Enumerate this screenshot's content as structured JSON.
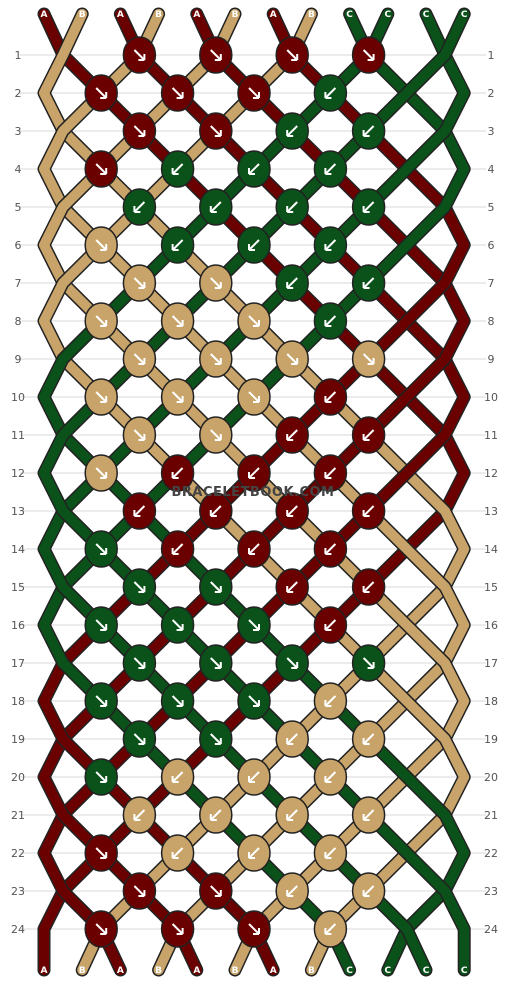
{
  "watermark": "BRACELETBOOK.COM",
  "colors": {
    "A": "#6b0000",
    "B": "#c8a46a",
    "C": "#0a5219"
  },
  "strands": [
    "A",
    "B",
    "A",
    "B",
    "A",
    "B",
    "A",
    "B",
    "C",
    "C",
    "C",
    "C"
  ],
  "rows": [
    {
      "label": "1",
      "knots": [
        {
          "color": "A",
          "dir": "se"
        },
        {
          "color": "A",
          "dir": "se"
        },
        {
          "color": "A",
          "dir": "se"
        },
        {
          "color": "A",
          "dir": "se"
        }
      ]
    },
    {
      "label": "2",
      "knots": [
        {
          "color": "A",
          "dir": "se"
        },
        {
          "color": "A",
          "dir": "se"
        },
        {
          "color": "A",
          "dir": "se"
        },
        {
          "color": "C",
          "dir": "sw"
        }
      ]
    },
    {
      "label": "3",
      "knots": [
        {
          "color": "A",
          "dir": "se"
        },
        {
          "color": "A",
          "dir": "se"
        },
        {
          "color": "C",
          "dir": "sw"
        },
        {
          "color": "C",
          "dir": "sw"
        }
      ]
    },
    {
      "label": "4",
      "knots": [
        {
          "color": "A",
          "dir": "se"
        },
        {
          "color": "C",
          "dir": "sw"
        },
        {
          "color": "C",
          "dir": "sw"
        },
        {
          "color": "C",
          "dir": "sw"
        }
      ]
    },
    {
      "label": "5",
      "knots": [
        {
          "color": "C",
          "dir": "sw"
        },
        {
          "color": "C",
          "dir": "sw"
        },
        {
          "color": "C",
          "dir": "sw"
        },
        {
          "color": "C",
          "dir": "sw"
        }
      ]
    },
    {
      "label": "6",
      "knots": [
        {
          "color": "B",
          "dir": "se"
        },
        {
          "color": "C",
          "dir": "sw"
        },
        {
          "color": "C",
          "dir": "sw"
        },
        {
          "color": "C",
          "dir": "sw"
        }
      ]
    },
    {
      "label": "7",
      "knots": [
        {
          "color": "B",
          "dir": "se"
        },
        {
          "color": "B",
          "dir": "se"
        },
        {
          "color": "C",
          "dir": "sw"
        },
        {
          "color": "C",
          "dir": "sw"
        }
      ]
    },
    {
      "label": "8",
      "knots": [
        {
          "color": "B",
          "dir": "se"
        },
        {
          "color": "B",
          "dir": "se"
        },
        {
          "color": "B",
          "dir": "se"
        },
        {
          "color": "C",
          "dir": "sw"
        }
      ]
    },
    {
      "label": "9",
      "knots": [
        {
          "color": "B",
          "dir": "se"
        },
        {
          "color": "B",
          "dir": "se"
        },
        {
          "color": "B",
          "dir": "se"
        },
        {
          "color": "B",
          "dir": "se"
        }
      ]
    },
    {
      "label": "10",
      "knots": [
        {
          "color": "B",
          "dir": "se"
        },
        {
          "color": "B",
          "dir": "se"
        },
        {
          "color": "B",
          "dir": "se"
        },
        {
          "color": "A",
          "dir": "sw"
        }
      ]
    },
    {
      "label": "11",
      "knots": [
        {
          "color": "B",
          "dir": "se"
        },
        {
          "color": "B",
          "dir": "se"
        },
        {
          "color": "A",
          "dir": "sw"
        },
        {
          "color": "A",
          "dir": "sw"
        }
      ]
    },
    {
      "label": "12",
      "knots": [
        {
          "color": "B",
          "dir": "se"
        },
        {
          "color": "A",
          "dir": "sw"
        },
        {
          "color": "A",
          "dir": "sw"
        },
        {
          "color": "A",
          "dir": "sw"
        }
      ]
    },
    {
      "label": "13",
      "knots": [
        {
          "color": "A",
          "dir": "sw"
        },
        {
          "color": "A",
          "dir": "sw"
        },
        {
          "color": "A",
          "dir": "sw"
        },
        {
          "color": "A",
          "dir": "sw"
        }
      ]
    },
    {
      "label": "14",
      "knots": [
        {
          "color": "C",
          "dir": "se"
        },
        {
          "color": "A",
          "dir": "sw"
        },
        {
          "color": "A",
          "dir": "sw"
        },
        {
          "color": "A",
          "dir": "sw"
        }
      ]
    },
    {
      "label": "15",
      "knots": [
        {
          "color": "C",
          "dir": "se"
        },
        {
          "color": "C",
          "dir": "se"
        },
        {
          "color": "A",
          "dir": "sw"
        },
        {
          "color": "A",
          "dir": "sw"
        }
      ]
    },
    {
      "label": "16",
      "knots": [
        {
          "color": "C",
          "dir": "se"
        },
        {
          "color": "C",
          "dir": "se"
        },
        {
          "color": "C",
          "dir": "se"
        },
        {
          "color": "A",
          "dir": "sw"
        }
      ]
    },
    {
      "label": "17",
      "knots": [
        {
          "color": "C",
          "dir": "se"
        },
        {
          "color": "C",
          "dir": "se"
        },
        {
          "color": "C",
          "dir": "se"
        },
        {
          "color": "C",
          "dir": "se"
        }
      ]
    },
    {
      "label": "18",
      "knots": [
        {
          "color": "C",
          "dir": "se"
        },
        {
          "color": "C",
          "dir": "se"
        },
        {
          "color": "C",
          "dir": "se"
        },
        {
          "color": "B",
          "dir": "sw"
        }
      ]
    },
    {
      "label": "19",
      "knots": [
        {
          "color": "C",
          "dir": "se"
        },
        {
          "color": "C",
          "dir": "se"
        },
        {
          "color": "B",
          "dir": "sw"
        },
        {
          "color": "B",
          "dir": "sw"
        }
      ]
    },
    {
      "label": "20",
      "knots": [
        {
          "color": "C",
          "dir": "se"
        },
        {
          "color": "B",
          "dir": "sw"
        },
        {
          "color": "B",
          "dir": "sw"
        },
        {
          "color": "B",
          "dir": "sw"
        }
      ]
    },
    {
      "label": "21",
      "knots": [
        {
          "color": "B",
          "dir": "sw"
        },
        {
          "color": "B",
          "dir": "sw"
        },
        {
          "color": "B",
          "dir": "sw"
        },
        {
          "color": "B",
          "dir": "sw"
        }
      ]
    },
    {
      "label": "22",
      "knots": [
        {
          "color": "A",
          "dir": "se"
        },
        {
          "color": "B",
          "dir": "sw"
        },
        {
          "color": "B",
          "dir": "sw"
        },
        {
          "color": "B",
          "dir": "sw"
        }
      ]
    },
    {
      "label": "23",
      "knots": [
        {
          "color": "A",
          "dir": "se"
        },
        {
          "color": "A",
          "dir": "se"
        },
        {
          "color": "B",
          "dir": "sw"
        },
        {
          "color": "B",
          "dir": "sw"
        }
      ]
    },
    {
      "label": "24",
      "knots": [
        {
          "color": "A",
          "dir": "se"
        },
        {
          "color": "A",
          "dir": "se"
        },
        {
          "color": "A",
          "dir": "se"
        },
        {
          "color": "B",
          "dir": "sw"
        }
      ]
    }
  ]
}
